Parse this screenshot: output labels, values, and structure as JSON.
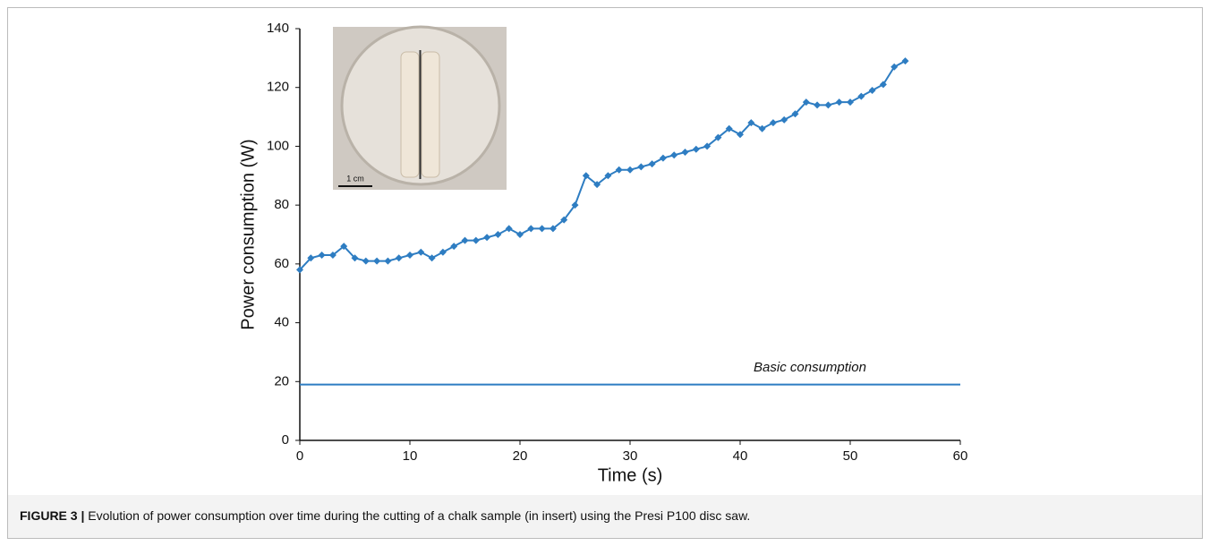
{
  "chart_data": {
    "type": "line",
    "x_label": "Time (s)",
    "y_label": "Power consumption (W)",
    "xlim": [
      0,
      60
    ],
    "xticks": [
      0,
      10,
      20,
      30,
      40,
      50,
      60
    ],
    "ylim": [
      0,
      140
    ],
    "yticks": [
      0,
      20,
      40,
      60,
      80,
      100,
      120,
      140
    ],
    "grid": false,
    "inset_label": "1 cm",
    "series": [
      {
        "color": "#2e7dc2",
        "marker": true,
        "x": [
          0,
          1,
          2,
          3,
          4,
          5,
          6,
          7,
          8,
          9,
          10,
          11,
          12,
          13,
          14,
          15,
          16,
          17,
          18,
          19,
          20,
          21,
          22,
          23,
          24,
          25,
          26,
          27,
          28,
          29,
          30,
          31,
          32,
          33,
          34,
          35,
          36,
          37,
          38,
          39,
          40,
          41,
          42,
          43,
          44,
          45,
          46,
          47,
          48,
          49,
          50,
          51,
          52,
          53,
          54,
          55
        ],
        "values": [
          58,
          62,
          63,
          63,
          66,
          62,
          61,
          61,
          61,
          62,
          63,
          64,
          62,
          64,
          66,
          68,
          68,
          69,
          70,
          72,
          70,
          72,
          72,
          72,
          75,
          80,
          90,
          87,
          90,
          92,
          92,
          93,
          94,
          96,
          97,
          98,
          99,
          100,
          103,
          106,
          104,
          108,
          106,
          108,
          109,
          111,
          115,
          114,
          114,
          115,
          115,
          117,
          119,
          121,
          127,
          129
        ]
      },
      {
        "name": "Basic consumption",
        "color": "#2e7dc2",
        "marker": false,
        "x": [
          0,
          60
        ],
        "values": [
          19,
          19
        ]
      }
    ]
  },
  "caption": {
    "label": "FIGURE 3 |",
    "text": "Evolution of power consumption over time during the cutting of a chalk sample (in insert) using the Presi P100 disc saw."
  }
}
